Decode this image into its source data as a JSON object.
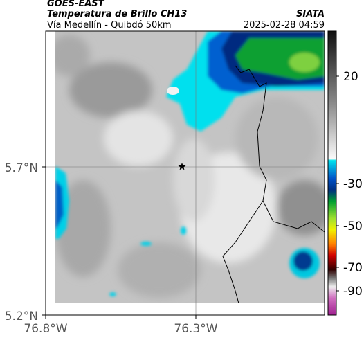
{
  "header": {
    "left_title": "GOES-EAST",
    "subtitle": "Temperatura de Brillo CH13",
    "region": "Vía Medellín - Quibdó 50km",
    "right_title": "SIATA",
    "timestamp": "2025-02-28 04:59"
  },
  "map": {
    "lat_labels": [
      "5.7°N",
      "5.2°N"
    ],
    "lon_labels": [
      "76.8°W",
      "76.3°W"
    ]
  },
  "colorbar": {
    "tick_labels": [
      "20",
      "-30",
      "-50",
      "-70",
      "-90"
    ]
  }
}
